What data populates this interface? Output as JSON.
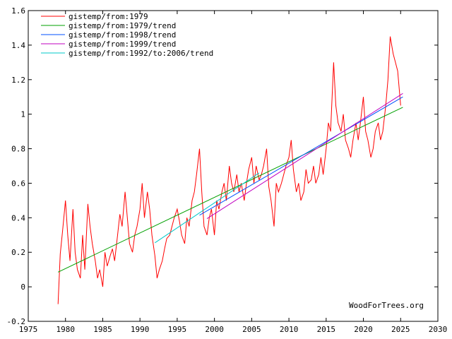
{
  "chart_data": {
    "type": "line",
    "title": "",
    "xlabel": "",
    "ylabel": "",
    "xlim": [
      1975,
      2030
    ],
    "ylim": [
      -0.2,
      1.6
    ],
    "x_ticks": [
      1975,
      1980,
      1985,
      1990,
      1995,
      2000,
      2005,
      2010,
      2015,
      2020,
      2025,
      2030
    ],
    "y_ticks": [
      -0.2,
      0,
      0.2,
      0.4,
      0.6,
      0.8,
      1,
      1.2,
      1.4,
      1.6
    ],
    "x_tick_labels": [
      "1975",
      "1980",
      "1985",
      "1990",
      "1995",
      "2000",
      "2005",
      "2010",
      "2015",
      "2020",
      "2025",
      "2030"
    ],
    "y_tick_labels": [
      "-0.2",
      "0",
      "0.2",
      "0.4",
      "0.6",
      "0.8",
      "1",
      "1.2",
      "1.4",
      "1.6"
    ],
    "grid": false,
    "legend_position": "top-left",
    "watermark": "WoodForTrees.org",
    "series": [
      {
        "name": "gistemp/from:1979",
        "color": "#ff0000",
        "kind": "line",
        "x": [
          1979.0,
          1979.3,
          1979.6,
          1980.0,
          1980.3,
          1980.6,
          1981.0,
          1981.3,
          1981.6,
          1982.0,
          1982.3,
          1982.6,
          1983.0,
          1983.3,
          1983.6,
          1984.0,
          1984.3,
          1984.6,
          1985.0,
          1985.3,
          1985.6,
          1986.0,
          1986.3,
          1986.6,
          1987.0,
          1987.3,
          1987.6,
          1988.0,
          1988.3,
          1988.6,
          1989.0,
          1989.3,
          1989.6,
          1990.0,
          1990.3,
          1990.6,
          1991.0,
          1991.3,
          1991.6,
          1992.0,
          1992.3,
          1992.6,
          1993.0,
          1993.3,
          1993.6,
          1994.0,
          1994.3,
          1994.6,
          1995.0,
          1995.3,
          1995.6,
          1996.0,
          1996.3,
          1996.6,
          1997.0,
          1997.3,
          1997.6,
          1998.0,
          1998.3,
          1998.6,
          1999.0,
          1999.3,
          1999.6,
          2000.0,
          2000.3,
          2000.6,
          2001.0,
          2001.3,
          2001.6,
          2002.0,
          2002.3,
          2002.6,
          2003.0,
          2003.3,
          2003.6,
          2004.0,
          2004.3,
          2004.6,
          2005.0,
          2005.3,
          2005.6,
          2006.0,
          2006.3,
          2006.6,
          2007.0,
          2007.3,
          2007.6,
          2008.0,
          2008.3,
          2008.6,
          2009.0,
          2009.3,
          2009.6,
          2010.0,
          2010.3,
          2010.6,
          2011.0,
          2011.3,
          2011.6,
          2012.0,
          2012.3,
          2012.6,
          2013.0,
          2013.3,
          2013.6,
          2014.0,
          2014.3,
          2014.6,
          2015.0,
          2015.3,
          2015.6,
          2016.0,
          2016.3,
          2016.6,
          2017.0,
          2017.3,
          2017.6,
          2018.0,
          2018.3,
          2018.6,
          2019.0,
          2019.3,
          2019.6,
          2020.0,
          2020.3,
          2020.6,
          2021.0,
          2021.3,
          2021.6,
          2022.0,
          2022.3,
          2022.6,
          2023.0,
          2023.3,
          2023.6,
          2024.0,
          2024.3,
          2024.6,
          2025.0
        ],
        "y": [
          -0.1,
          0.19,
          0.32,
          0.5,
          0.3,
          0.15,
          0.45,
          0.2,
          0.1,
          0.05,
          0.3,
          0.1,
          0.48,
          0.35,
          0.25,
          0.15,
          0.05,
          0.1,
          0.0,
          0.2,
          0.12,
          0.18,
          0.22,
          0.15,
          0.3,
          0.42,
          0.35,
          0.55,
          0.4,
          0.25,
          0.2,
          0.3,
          0.35,
          0.45,
          0.6,
          0.4,
          0.55,
          0.45,
          0.3,
          0.18,
          0.05,
          0.1,
          0.15,
          0.22,
          0.28,
          0.3,
          0.35,
          0.4,
          0.45,
          0.38,
          0.3,
          0.25,
          0.4,
          0.35,
          0.5,
          0.55,
          0.65,
          0.8,
          0.55,
          0.35,
          0.3,
          0.4,
          0.45,
          0.3,
          0.5,
          0.45,
          0.55,
          0.6,
          0.5,
          0.7,
          0.6,
          0.55,
          0.65,
          0.55,
          0.6,
          0.5,
          0.6,
          0.68,
          0.75,
          0.6,
          0.7,
          0.62,
          0.65,
          0.7,
          0.8,
          0.58,
          0.5,
          0.35,
          0.6,
          0.55,
          0.6,
          0.65,
          0.7,
          0.75,
          0.85,
          0.68,
          0.55,
          0.6,
          0.5,
          0.55,
          0.68,
          0.6,
          0.62,
          0.7,
          0.6,
          0.65,
          0.75,
          0.65,
          0.8,
          0.95,
          0.9,
          1.3,
          1.05,
          0.95,
          0.9,
          1.0,
          0.85,
          0.8,
          0.75,
          0.85,
          0.95,
          0.85,
          0.95,
          1.1,
          0.9,
          0.85,
          0.75,
          0.8,
          0.9,
          0.95,
          0.85,
          0.9,
          1.05,
          1.2,
          1.45,
          1.35,
          1.3,
          1.25,
          1.05
        ]
      },
      {
        "name": "gistemp/from:1979/trend",
        "color": "#00a000",
        "kind": "line",
        "x": [
          1979.0,
          2025.3
        ],
        "y": [
          0.085,
          1.04
        ]
      },
      {
        "name": "gistemp/from:1998/trend",
        "color": "#0050ff",
        "kind": "line",
        "x": [
          1998.0,
          2025.3
        ],
        "y": [
          0.415,
          1.1
        ]
      },
      {
        "name": "gistemp/from:1999/trend",
        "color": "#c000c0",
        "kind": "line",
        "x": [
          1999.0,
          2025.3
        ],
        "y": [
          0.395,
          1.12
        ]
      },
      {
        "name": "gistemp/from:1992/to:2006/trend",
        "color": "#00c8c8",
        "kind": "line",
        "x": [
          1992.0,
          2006.0
        ],
        "y": [
          0.255,
          0.66
        ]
      }
    ]
  }
}
